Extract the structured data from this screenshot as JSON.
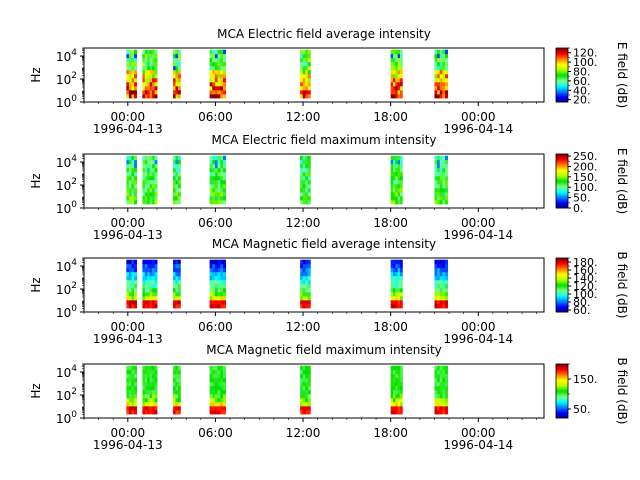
{
  "figure": {
    "width": 640,
    "height": 480,
    "background": "#ffffff"
  },
  "colormap": [
    "#00008f",
    "#0000ff",
    "#0080ff",
    "#00ffff",
    "#80ff80",
    "#00e000",
    "#b0ff00",
    "#ffff00",
    "#ff8000",
    "#ff0000",
    "#800000"
  ],
  "chart_data": [
    {
      "type": "heatmap",
      "title": "MCA  Electric field average intensity",
      "ylabel": "Hz",
      "ylim_log10": [
        0,
        4.7
      ],
      "yticks": [
        {
          "exp": 0,
          "label": "10",
          "sup": "0"
        },
        {
          "exp": 2,
          "label": "10",
          "sup": "2"
        },
        {
          "exp": 4,
          "label": "10",
          "sup": "4"
        }
      ],
      "xlim_hours": [
        -3,
        28.5
      ],
      "xticks": [
        {
          "hour": 0,
          "label": "00:00"
        },
        {
          "hour": 6,
          "label": "06:00"
        },
        {
          "hour": 12,
          "label": "12:00"
        },
        {
          "hour": 18,
          "label": "18:00"
        },
        {
          "hour": 24,
          "label": "00:00"
        }
      ],
      "date_labels": [
        {
          "hour": 0,
          "label": "1996-04-13"
        },
        {
          "hour": 24,
          "label": "1996-04-14"
        }
      ],
      "colorbar": {
        "label": "E field (dB)",
        "min": 15,
        "max": 130,
        "ticks": [
          {
            "v": 20,
            "label": "20."
          },
          {
            "v": 40,
            "label": "40."
          },
          {
            "v": 60,
            "label": "60."
          },
          {
            "v": 80,
            "label": "80."
          },
          {
            "v": 100,
            "label": "100."
          },
          {
            "v": 120,
            "label": "120."
          }
        ]
      },
      "profile": "e_avg",
      "segments": [
        [
          -0.1,
          0.6
        ],
        [
          1.0,
          2.0
        ],
        [
          3.1,
          3.6
        ],
        [
          5.6,
          6.7
        ],
        [
          11.8,
          12.5
        ],
        [
          18.0,
          18.8
        ],
        [
          21.0,
          21.9
        ]
      ]
    },
    {
      "type": "heatmap",
      "title": "MCA  Electric field maximum intensity",
      "ylabel": "Hz",
      "ylim_log10": [
        0,
        4.7
      ],
      "yticks": [
        {
          "exp": 0,
          "label": "10",
          "sup": "0"
        },
        {
          "exp": 2,
          "label": "10",
          "sup": "2"
        },
        {
          "exp": 4,
          "label": "10",
          "sup": "4"
        }
      ],
      "xlim_hours": [
        -3,
        28.5
      ],
      "xticks": [
        {
          "hour": 0,
          "label": "00:00"
        },
        {
          "hour": 6,
          "label": "06:00"
        },
        {
          "hour": 12,
          "label": "12:00"
        },
        {
          "hour": 18,
          "label": "18:00"
        },
        {
          "hour": 24,
          "label": "00:00"
        }
      ],
      "date_labels": [
        {
          "hour": 0,
          "label": "1996-04-13"
        },
        {
          "hour": 24,
          "label": "1996-04-14"
        }
      ],
      "colorbar": {
        "label": "E field (dB)",
        "min": 0,
        "max": 260,
        "ticks": [
          {
            "v": 0,
            "label": "0."
          },
          {
            "v": 50,
            "label": "50."
          },
          {
            "v": 100,
            "label": "100."
          },
          {
            "v": 150,
            "label": "150."
          },
          {
            "v": 200,
            "label": "200."
          },
          {
            "v": 250,
            "label": "250."
          }
        ]
      },
      "profile": "e_max",
      "segments": [
        [
          -0.1,
          0.6
        ],
        [
          1.0,
          2.0
        ],
        [
          3.1,
          3.6
        ],
        [
          5.6,
          6.7
        ],
        [
          11.8,
          12.5
        ],
        [
          18.0,
          18.8
        ],
        [
          21.0,
          21.9
        ]
      ]
    },
    {
      "type": "heatmap",
      "title": "MCA  Magnetic field average intensity",
      "ylabel": "Hz",
      "ylim_log10": [
        0,
        4.7
      ],
      "yticks": [
        {
          "exp": 0,
          "label": "10",
          "sup": "0"
        },
        {
          "exp": 2,
          "label": "10",
          "sup": "2"
        },
        {
          "exp": 4,
          "label": "10",
          "sup": "4"
        }
      ],
      "xlim_hours": [
        -3,
        28.5
      ],
      "xticks": [
        {
          "hour": 0,
          "label": "00:00"
        },
        {
          "hour": 6,
          "label": "06:00"
        },
        {
          "hour": 12,
          "label": "12:00"
        },
        {
          "hour": 18,
          "label": "18:00"
        },
        {
          "hour": 24,
          "label": "00:00"
        }
      ],
      "date_labels": [
        {
          "hour": 0,
          "label": "1996-04-13"
        },
        {
          "hour": 24,
          "label": "1996-04-14"
        }
      ],
      "colorbar": {
        "label": "B field (dB)",
        "min": 55,
        "max": 190,
        "ticks": [
          {
            "v": 60,
            "label": "60."
          },
          {
            "v": 80,
            "label": "80."
          },
          {
            "v": 100,
            "label": "100."
          },
          {
            "v": 120,
            "label": "120."
          },
          {
            "v": 140,
            "label": "140."
          },
          {
            "v": 160,
            "label": "160."
          },
          {
            "v": 180,
            "label": "180."
          }
        ]
      },
      "profile": "b_avg",
      "segments": [
        [
          -0.1,
          0.6
        ],
        [
          1.0,
          2.0
        ],
        [
          3.1,
          3.6
        ],
        [
          5.6,
          6.7
        ],
        [
          11.8,
          12.5
        ],
        [
          18.0,
          18.8
        ],
        [
          21.0,
          21.9
        ]
      ]
    },
    {
      "type": "heatmap",
      "title": "MCA  Magnetic field maximum intensity",
      "ylabel": "Hz",
      "ylim_log10": [
        0,
        4.7
      ],
      "yticks": [
        {
          "exp": 0,
          "label": "10",
          "sup": "0"
        },
        {
          "exp": 2,
          "label": "10",
          "sup": "2"
        },
        {
          "exp": 4,
          "label": "10",
          "sup": "4"
        }
      ],
      "xlim_hours": [
        -3,
        28.5
      ],
      "xticks": [
        {
          "hour": 0,
          "label": "00:00"
        },
        {
          "hour": 6,
          "label": "06:00"
        },
        {
          "hour": 12,
          "label": "12:00"
        },
        {
          "hour": 18,
          "label": "18:00"
        },
        {
          "hour": 24,
          "label": "00:00"
        }
      ],
      "date_labels": [
        {
          "hour": 0,
          "label": "1996-04-13"
        },
        {
          "hour": 24,
          "label": "1996-04-14"
        }
      ],
      "colorbar": {
        "label": "B field (dB)",
        "min": 20,
        "max": 200,
        "ticks": [
          {
            "v": 50,
            "label": "50."
          },
          {
            "v": 150,
            "label": "150."
          }
        ]
      },
      "profile": "b_max",
      "segments": [
        [
          -0.1,
          0.6
        ],
        [
          1.0,
          2.0
        ],
        [
          3.1,
          3.6
        ],
        [
          5.6,
          6.7
        ],
        [
          11.8,
          12.5
        ],
        [
          18.0,
          18.8
        ],
        [
          21.0,
          21.9
        ]
      ]
    }
  ]
}
